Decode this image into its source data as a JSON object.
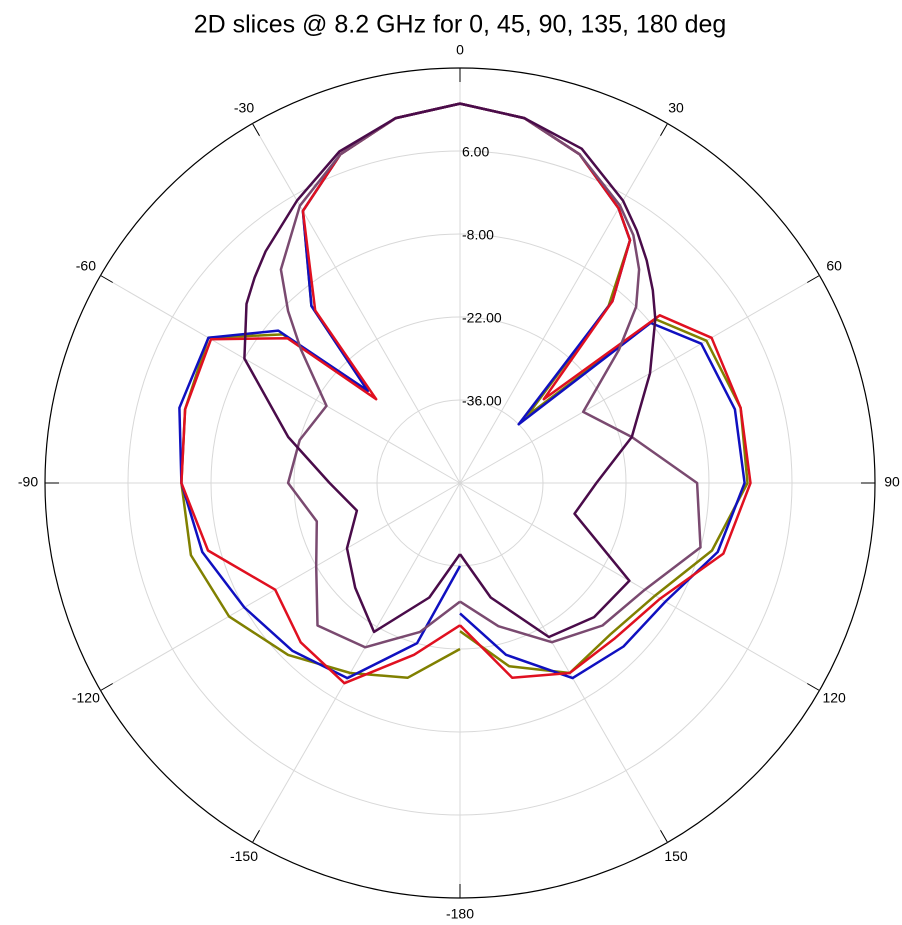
{
  "chart_data": {
    "type": "polar",
    "title": "2D slices @ 8.2 GHz for 0, 45, 90, 135, 180 deg",
    "x": [
      -180,
      -165,
      -150,
      -135,
      -120,
      -105,
      -90,
      -75,
      -60,
      -50,
      -45,
      -40,
      -30,
      -20,
      -10,
      0,
      10,
      20,
      30,
      35,
      40,
      45,
      50,
      60,
      75,
      90,
      105,
      120,
      135,
      150,
      165,
      180
    ],
    "series": [
      {
        "color": "#808000",
        "values": [
          -22,
          -16,
          -13,
          -9,
          -5,
          -3,
          -3,
          -2,
          -1,
          -11,
          -28,
          -11,
          3,
          9,
          12.5,
          14,
          12.5,
          9,
          3.5,
          0,
          -11,
          -34,
          -7,
          -2,
          -1,
          -1.5,
          -6,
          -12,
          -14,
          -13,
          -18,
          -25
        ]
      },
      {
        "color": "#1010c0",
        "values": [
          -36,
          -22,
          -12,
          -10,
          -8,
          -5,
          -3,
          -1,
          -1,
          -10,
          -28,
          -11,
          3,
          9,
          12.5,
          14,
          12.5,
          9,
          3.5,
          0,
          -10,
          -36,
          -8,
          -3,
          -2,
          -2,
          -5,
          -10,
          -11,
          -12,
          -20,
          -28
        ]
      },
      {
        "color": "#e01020",
        "values": [
          -26,
          -20,
          -11,
          -12,
          -14,
          -6,
          -3,
          -2,
          -1.5,
          -12,
          -30,
          -12,
          3,
          9,
          12.5,
          14,
          12.5,
          9,
          3.5,
          0,
          -10,
          -30,
          -6,
          -1,
          -1,
          -1,
          -4,
          -11,
          -13,
          -13,
          -16,
          -26
        ]
      },
      {
        "color": "#7a4a70",
        "values": [
          -30,
          -24,
          -18,
          -16,
          -22,
          -25,
          -21,
          -22,
          -24,
          -15,
          -9,
          -3,
          4,
          9,
          12.5,
          14,
          12.5,
          9,
          4,
          1,
          -3,
          -8,
          -15,
          -26,
          -20,
          -10,
          -8,
          -14,
          -16,
          -19,
          -25,
          -30
        ]
      },
      {
        "color": "#4a0c4a",
        "values": [
          -38,
          -30,
          -21,
          -25,
          -28,
          -32,
          -28,
          -20,
          -8,
          -3,
          -1,
          1,
          5,
          9.5,
          12.5,
          14,
          12.5,
          10,
          5,
          2,
          -1,
          -4,
          -7,
          -13,
          -20,
          -27,
          -30,
          -17,
          -18,
          -20,
          -30,
          -38
        ]
      }
    ],
    "rlim": [
      -50,
      20
    ],
    "rticks": [
      {
        "value": -36,
        "label": "-36.00"
      },
      {
        "value": -22,
        "label": "-22.00"
      },
      {
        "value": -8,
        "label": "-8.00"
      },
      {
        "value": 6,
        "label": "6.00"
      }
    ],
    "thetaticks": [
      0,
      30,
      60,
      90,
      120,
      150,
      -180,
      -150,
      -120,
      -90,
      -60,
      -30
    ],
    "grid": true
  }
}
